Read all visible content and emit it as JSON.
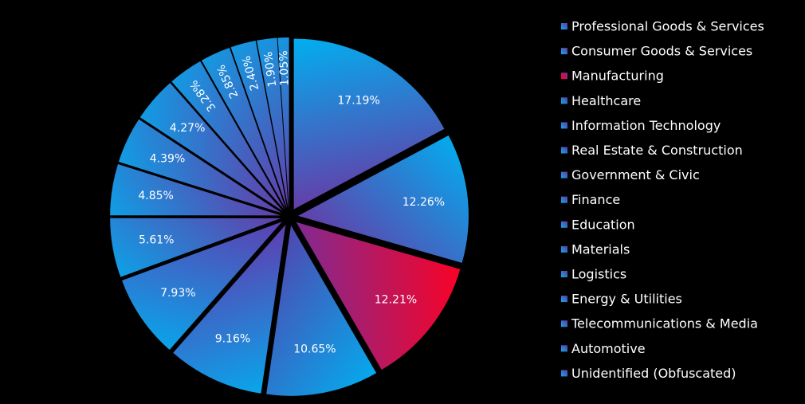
{
  "chart_data": {
    "type": "pie",
    "legend_position": "right",
    "slices": [
      {
        "label": "Professional Goods & Services",
        "value": 17.19,
        "display": "17.19%",
        "color_a": "#00b0f0",
        "color_b": "#7030a0"
      },
      {
        "label": "Consumer Goods & Services",
        "value": 12.26,
        "display": "12.26%",
        "color_a": "#00b0f0",
        "color_b": "#7030a0"
      },
      {
        "label": "Manufacturing",
        "value": 12.21,
        "display": "12.21%",
        "color_a": "#ff0020",
        "color_b": "#7030a0"
      },
      {
        "label": "Healthcare",
        "value": 10.65,
        "display": "10.65%",
        "color_a": "#00b0f0",
        "color_b": "#5a3aa8"
      },
      {
        "label": "Information Technology",
        "value": 9.16,
        "display": "9.16%",
        "color_a": "#00b0f0",
        "color_b": "#6a30a8"
      },
      {
        "label": "Real Estate & Construction",
        "value": 7.93,
        "display": "7.93%",
        "color_a": "#00b0f0",
        "color_b": "#6a30a8"
      },
      {
        "label": "Government & Civic",
        "value": 5.61,
        "display": "5.61%",
        "color_a": "#00b0f0",
        "color_b": "#7030a0"
      },
      {
        "label": "Finance",
        "value": 4.85,
        "display": "4.85%",
        "color_a": "#00b0f0",
        "color_b": "#7030a0"
      },
      {
        "label": "Education",
        "value": 4.39,
        "display": "4.39%",
        "color_a": "#00b0f0",
        "color_b": "#7030a0"
      },
      {
        "label": "Materials",
        "value": 4.27,
        "display": "4.27%",
        "color_a": "#00b0f0",
        "color_b": "#7030a0"
      },
      {
        "label": "Logistics",
        "value": 3.28,
        "display": "3.28%",
        "color_a": "#00b0f0",
        "color_b": "#7030a0"
      },
      {
        "label": "Energy & Utilities",
        "value": 2.85,
        "display": "2.85%",
        "color_a": "#00b0f0",
        "color_b": "#7030a0"
      },
      {
        "label": "Telecommunications & Media",
        "value": 2.4,
        "display": "2.40%",
        "color_a": "#00b0f0",
        "color_b": "#7030a0"
      },
      {
        "label": "Automotive",
        "value": 1.9,
        "display": "1.90%",
        "color_a": "#00b0f0",
        "color_b": "#7030a0"
      },
      {
        "label": "Unidentified (Obfuscated)",
        "value": 1.05,
        "display": "1.05%",
        "color_a": "#00b0f0",
        "color_b": "#7030a0"
      }
    ]
  }
}
